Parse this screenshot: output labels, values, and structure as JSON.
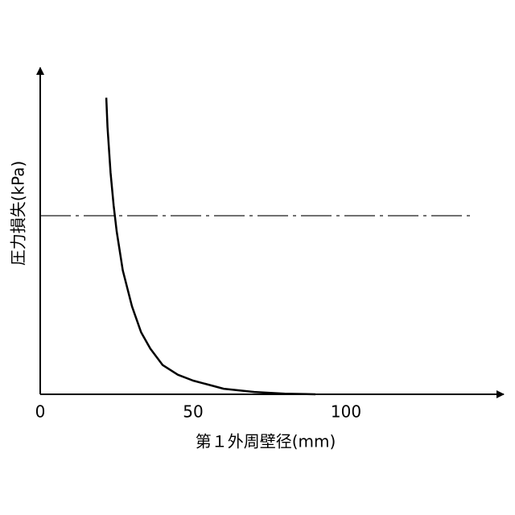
{
  "chart_data": {
    "type": "line",
    "xlabel": "第１外周壁径(mm)",
    "ylabel": "圧力損失(kPa)",
    "x": [
      21.6,
      22,
      23,
      24,
      25,
      27,
      30,
      33,
      36,
      40,
      45,
      50,
      60,
      70,
      80,
      90
    ],
    "series": [
      {
        "color": "#000000",
        "values": [
          91,
          82,
          68,
          58,
          50,
          38,
          27,
          19,
          14,
          9,
          6,
          4.2,
          1.7,
          0.7,
          0.2,
          0
        ]
      }
    ],
    "xlim": [
      0,
      150
    ],
    "ylim": [
      0,
      100
    ],
    "xticks": [
      0,
      50,
      100
    ],
    "reference_line": {
      "value": 54.8,
      "style": "dash-dot"
    }
  }
}
